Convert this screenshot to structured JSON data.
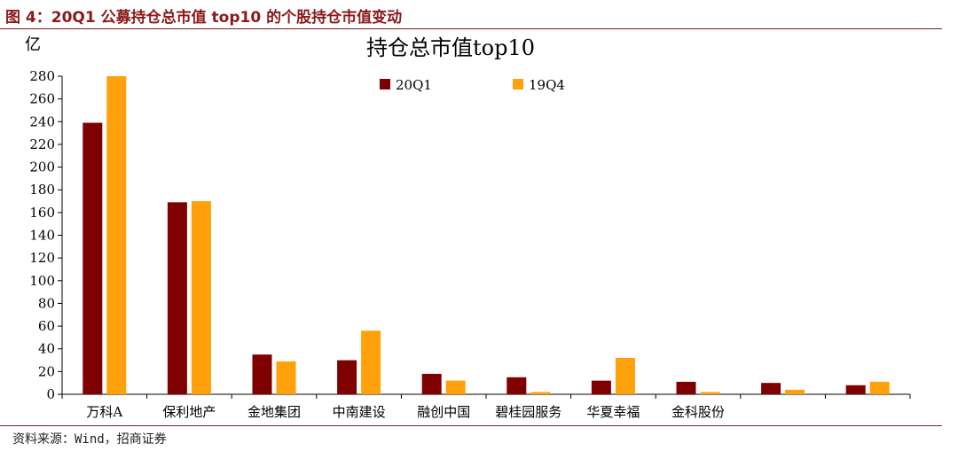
{
  "figure": {
    "caption": "图 4：20Q1 公募持仓总市值 top10 的个股持仓市值变动",
    "source": "资料来源：Wind，招商证券"
  },
  "colors": {
    "series_20Q1": "#7f0000",
    "series_19Q4": "#ffa10a",
    "header_rule": "#7b1f1f",
    "caption_text": "#8b1a1a"
  },
  "chart_data": {
    "type": "bar",
    "title": "持仓总市值top10",
    "ylabel": "亿",
    "xlabel": "",
    "ylim": [
      0,
      280
    ],
    "yticks": [
      0,
      20,
      40,
      60,
      80,
      100,
      120,
      140,
      160,
      180,
      200,
      220,
      240,
      260,
      280
    ],
    "grid": false,
    "legend_position": "top-center",
    "categories": [
      "万科A",
      "保利地产",
      "金地集团",
      "中南建设",
      "融创中国",
      "碧桂园服务",
      "华夏幸福",
      "金科股份",
      "",
      ""
    ],
    "series": [
      {
        "name": "20Q1",
        "color": "#7f0000",
        "values": [
          239,
          169,
          35,
          30,
          18,
          15,
          12,
          11,
          10,
          8
        ]
      },
      {
        "name": "19Q4",
        "color": "#ffa10a",
        "values": [
          280,
          170,
          29,
          56,
          12,
          2,
          32,
          2,
          4,
          11
        ]
      }
    ]
  }
}
